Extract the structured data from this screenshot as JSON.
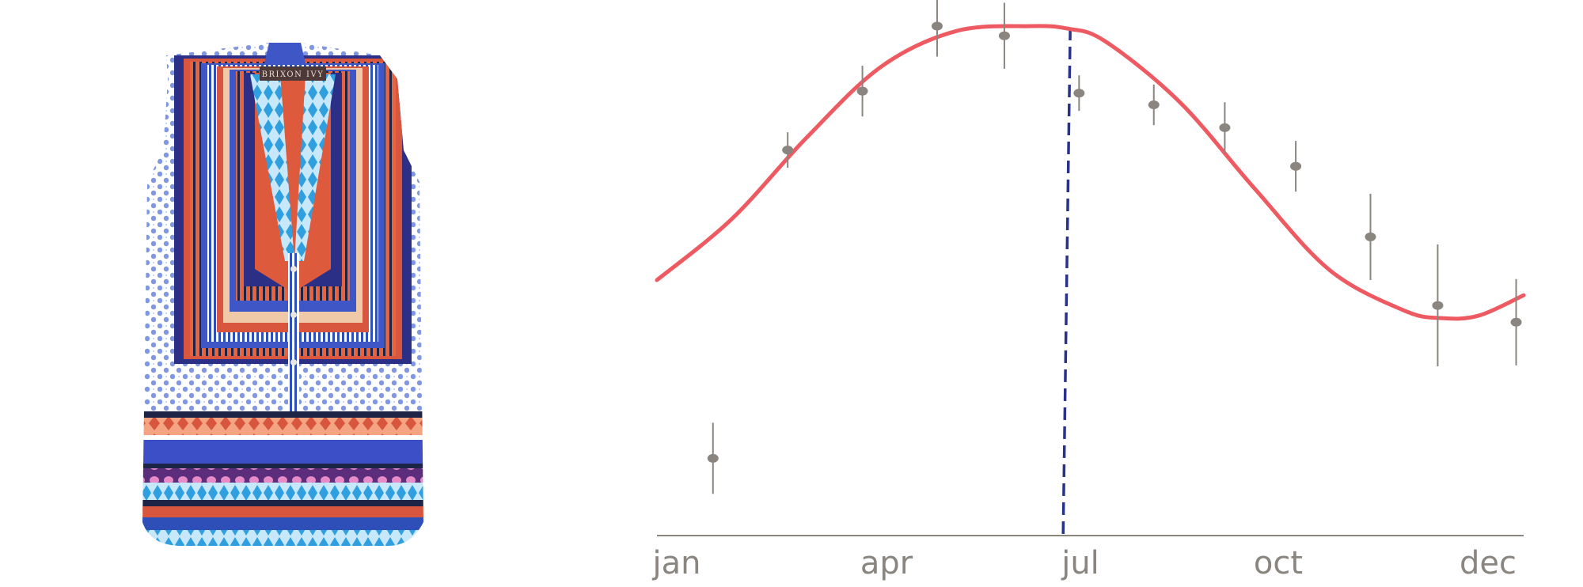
{
  "product": {
    "brand_label": "BRIXON IVY",
    "colors": {
      "orange": "#d8553e",
      "royal_blue": "#3f56c6",
      "light_blue": "#b8c8ee",
      "navy": "#1d2446",
      "pink": "#e7a08d",
      "cyan": "#4fb4e6",
      "purple": "#8e4fb8"
    }
  },
  "chart_data": {
    "type": "line",
    "title": "",
    "xlabel": "",
    "ylabel": "",
    "x_ticks": [
      "jan",
      "apr",
      "jul",
      "oct",
      "dec"
    ],
    "xlim": [
      1,
      12.6
    ],
    "ylim": [
      0,
      1
    ],
    "grid": false,
    "series": [
      {
        "kind": "line",
        "color": "#ee5a62",
        "x": [
          1,
          2,
          3,
          4,
          5,
          6,
          6.5,
          7,
          8,
          9,
          10,
          11,
          11.5,
          12,
          12.6
        ],
        "y": [
          0.5,
          0.62,
          0.78,
          0.92,
          0.99,
          1.0,
          0.995,
          0.97,
          0.85,
          0.68,
          0.52,
          0.44,
          0.425,
          0.43,
          0.47
        ]
      },
      {
        "kind": "points_with_error_bars",
        "color": "#8a857f",
        "x": [
          1.75,
          2.75,
          3.75,
          4.75,
          5.65,
          6.65,
          7.65,
          8.6,
          9.55,
          10.55,
          11.45,
          12.5
        ],
        "y": [
          0.149,
          0.756,
          0.872,
          1.0,
          0.981,
          0.868,
          0.845,
          0.8,
          0.724,
          0.585,
          0.45,
          0.417
        ],
        "err": [
          0.07,
          0.035,
          0.05,
          0.06,
          0.065,
          0.035,
          0.04,
          0.05,
          0.05,
          0.085,
          0.12,
          0.085
        ]
      }
    ],
    "annotations": [
      {
        "type": "vertical_line",
        "x": 6.5,
        "style": "dashed",
        "color": "#29328a"
      }
    ]
  }
}
